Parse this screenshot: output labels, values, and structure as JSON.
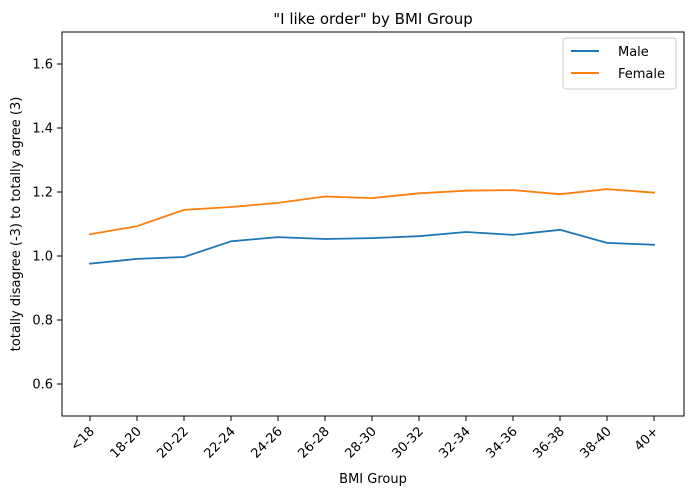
{
  "chart_data": {
    "type": "line",
    "title": "\"I like order\" by BMI Group",
    "xlabel": "BMI Group",
    "ylabel": "totally disagree (-3) to totally agree (3)",
    "categories": [
      "<18",
      "18-20",
      "20-22",
      "22-24",
      "24-26",
      "26-28",
      "28-30",
      "30-32",
      "32-34",
      "34-36",
      "36-38",
      "38-40",
      "40+"
    ],
    "ylim": [
      0.5,
      1.7
    ],
    "yticks": [
      "0.6",
      "0.8",
      "1.0",
      "1.2",
      "1.4",
      "1.6"
    ],
    "grid": false,
    "legend_position": "top-right",
    "series": [
      {
        "name": "Male",
        "color": "#1f77b4",
        "values": [
          0.976,
          0.991,
          0.997,
          1.046,
          1.059,
          1.053,
          1.056,
          1.062,
          1.075,
          1.066,
          1.082,
          1.041,
          1.035
        ]
      },
      {
        "name": "Female",
        "color": "#ff7f0e",
        "values": [
          1.068,
          1.093,
          1.144,
          1.153,
          1.166,
          1.186,
          1.181,
          1.196,
          1.204,
          1.206,
          1.193,
          1.209,
          1.198
        ]
      }
    ]
  }
}
